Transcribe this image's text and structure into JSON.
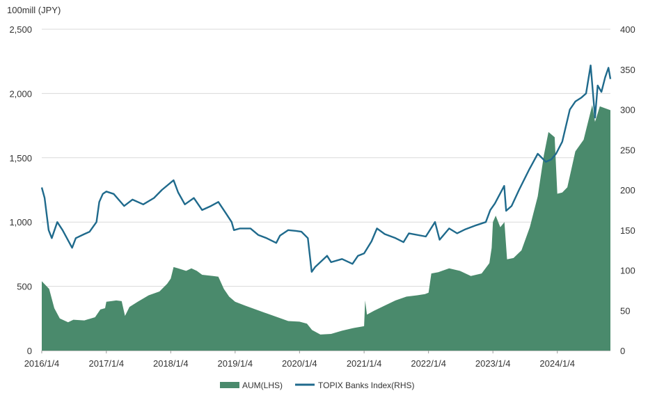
{
  "chart_data": {
    "type": "bar+line",
    "unit_label": "100mill (JPY)",
    "x_tick_labels": [
      "2016/1/4",
      "2017/1/4",
      "2018/1/4",
      "2019/1/4",
      "2020/1/4",
      "2021/1/4",
      "2022/1/4",
      "2023/1/4",
      "2024/1/4"
    ],
    "x_range": [
      "2016-01-04",
      "2024-10-31"
    ],
    "y_left": {
      "min": 0,
      "max": 2500,
      "ticks": [
        0,
        500,
        1000,
        1500,
        2000,
        2500
      ],
      "tick_labels": [
        "0",
        "500",
        "1,000",
        "1,500",
        "2,000",
        "2,500"
      ]
    },
    "y_right": {
      "min": 0,
      "max": 400,
      "ticks": [
        0,
        50,
        100,
        150,
        200,
        250,
        300,
        350,
        400
      ],
      "tick_labels": [
        "0",
        "50",
        "100",
        "150",
        "200",
        "250",
        "300",
        "350",
        "400"
      ]
    },
    "grid": "horizontal",
    "legend_position": "bottom-center",
    "colors": {
      "aum": "#4a8a6c",
      "topix": "#1f6a8c",
      "grid": "#d9d9d9",
      "text": "#333333"
    },
    "series": [
      {
        "name": "AUM(LHS)",
        "kind": "area",
        "axis": "left",
        "points": [
          [
            "2016-01-04",
            540
          ],
          [
            "2016-02-15",
            480
          ],
          [
            "2016-03-15",
            330
          ],
          [
            "2016-04-15",
            250
          ],
          [
            "2016-06-01",
            220
          ],
          [
            "2016-07-01",
            240
          ],
          [
            "2016-09-01",
            235
          ],
          [
            "2016-11-01",
            260
          ],
          [
            "2016-12-01",
            320
          ],
          [
            "2016-12-28",
            330
          ],
          [
            "2017-01-04",
            380
          ],
          [
            "2017-02-01",
            385
          ],
          [
            "2017-03-01",
            390
          ],
          [
            "2017-04-01",
            385
          ],
          [
            "2017-04-20",
            270
          ],
          [
            "2017-05-15",
            340
          ],
          [
            "2017-07-01",
            380
          ],
          [
            "2017-09-01",
            430
          ],
          [
            "2017-11-01",
            460
          ],
          [
            "2017-12-15",
            520
          ],
          [
            "2018-01-04",
            560
          ],
          [
            "2018-01-20",
            650
          ],
          [
            "2018-02-15",
            640
          ],
          [
            "2018-04-01",
            620
          ],
          [
            "2018-05-01",
            640
          ],
          [
            "2018-06-01",
            620
          ],
          [
            "2018-07-01",
            590
          ],
          [
            "2018-09-01",
            580
          ],
          [
            "2018-10-01",
            575
          ],
          [
            "2018-11-01",
            480
          ],
          [
            "2018-12-01",
            420
          ],
          [
            "2019-01-04",
            380
          ],
          [
            "2019-03-01",
            350
          ],
          [
            "2019-05-01",
            320
          ],
          [
            "2019-07-01",
            290
          ],
          [
            "2019-09-01",
            260
          ],
          [
            "2019-11-01",
            230
          ],
          [
            "2020-01-04",
            225
          ],
          [
            "2020-02-15",
            210
          ],
          [
            "2020-03-15",
            160
          ],
          [
            "2020-05-01",
            125
          ],
          [
            "2020-07-01",
            130
          ],
          [
            "2020-09-01",
            155
          ],
          [
            "2020-11-01",
            175
          ],
          [
            "2020-12-15",
            185
          ],
          [
            "2021-01-04",
            190
          ],
          [
            "2021-01-10",
            390
          ],
          [
            "2021-01-20",
            280
          ],
          [
            "2021-03-01",
            310
          ],
          [
            "2021-05-01",
            350
          ],
          [
            "2021-07-01",
            390
          ],
          [
            "2021-09-01",
            420
          ],
          [
            "2021-11-01",
            430
          ],
          [
            "2021-12-15",
            440
          ],
          [
            "2022-01-04",
            450
          ],
          [
            "2022-01-20",
            600
          ],
          [
            "2022-03-01",
            610
          ],
          [
            "2022-05-01",
            640
          ],
          [
            "2022-07-01",
            620
          ],
          [
            "2022-09-01",
            580
          ],
          [
            "2022-11-01",
            600
          ],
          [
            "2022-12-15",
            680
          ],
          [
            "2022-12-28",
            800
          ],
          [
            "2023-01-04",
            1000
          ],
          [
            "2023-01-20",
            1050
          ],
          [
            "2023-02-15",
            960
          ],
          [
            "2023-03-10",
            1000
          ],
          [
            "2023-03-25",
            710
          ],
          [
            "2023-05-01",
            720
          ],
          [
            "2023-06-15",
            780
          ],
          [
            "2023-08-01",
            960
          ],
          [
            "2023-09-15",
            1200
          ],
          [
            "2023-10-20",
            1520
          ],
          [
            "2023-11-15",
            1700
          ],
          [
            "2023-12-20",
            1660
          ],
          [
            "2024-01-04",
            1220
          ],
          [
            "2024-02-01",
            1230
          ],
          [
            "2024-03-01",
            1270
          ],
          [
            "2024-04-15",
            1550
          ],
          [
            "2024-06-01",
            1640
          ],
          [
            "2024-07-20",
            1910
          ],
          [
            "2024-08-05",
            1780
          ],
          [
            "2024-09-01",
            1900
          ],
          [
            "2024-10-31",
            1870
          ]
        ]
      },
      {
        "name": "TOPIX Banks Index(RHS)",
        "kind": "line",
        "axis": "right",
        "points": [
          [
            "2016-01-04",
            203
          ],
          [
            "2016-01-20",
            190
          ],
          [
            "2016-02-12",
            150
          ],
          [
            "2016-03-01",
            140
          ],
          [
            "2016-04-01",
            160
          ],
          [
            "2016-05-01",
            150
          ],
          [
            "2016-06-24",
            128
          ],
          [
            "2016-07-15",
            140
          ],
          [
            "2016-09-01",
            145
          ],
          [
            "2016-10-01",
            148
          ],
          [
            "2016-11-09",
            160
          ],
          [
            "2016-11-25",
            185
          ],
          [
            "2016-12-15",
            195
          ],
          [
            "2017-01-04",
            198
          ],
          [
            "2017-02-15",
            195
          ],
          [
            "2017-04-15",
            180
          ],
          [
            "2017-06-01",
            188
          ],
          [
            "2017-08-01",
            182
          ],
          [
            "2017-10-01",
            190
          ],
          [
            "2017-11-15",
            200
          ],
          [
            "2018-01-20",
            212
          ],
          [
            "2018-02-15",
            197
          ],
          [
            "2018-03-25",
            182
          ],
          [
            "2018-05-15",
            190
          ],
          [
            "2018-07-01",
            175
          ],
          [
            "2018-08-20",
            180
          ],
          [
            "2018-10-01",
            185
          ],
          [
            "2018-11-15",
            170
          ],
          [
            "2018-12-15",
            160
          ],
          [
            "2018-12-28",
            150
          ],
          [
            "2019-02-01",
            152
          ],
          [
            "2019-04-01",
            152
          ],
          [
            "2019-05-15",
            144
          ],
          [
            "2019-07-01",
            140
          ],
          [
            "2019-08-25",
            134
          ],
          [
            "2019-09-15",
            143
          ],
          [
            "2019-11-01",
            150
          ],
          [
            "2019-12-15",
            149
          ],
          [
            "2020-01-15",
            148
          ],
          [
            "2020-02-20",
            140
          ],
          [
            "2020-03-13",
            98
          ],
          [
            "2020-04-01",
            104
          ],
          [
            "2020-06-08",
            118
          ],
          [
            "2020-07-01",
            110
          ],
          [
            "2020-09-01",
            114
          ],
          [
            "2020-10-30",
            108
          ],
          [
            "2020-11-30",
            118
          ],
          [
            "2021-01-04",
            121
          ],
          [
            "2021-02-15",
            136
          ],
          [
            "2021-03-18",
            152
          ],
          [
            "2021-05-01",
            145
          ],
          [
            "2021-07-01",
            140
          ],
          [
            "2021-08-15",
            135
          ],
          [
            "2021-09-15",
            146
          ],
          [
            "2021-12-20",
            142
          ],
          [
            "2022-02-10",
            160
          ],
          [
            "2022-03-08",
            138
          ],
          [
            "2022-05-01",
            152
          ],
          [
            "2022-06-15",
            146
          ],
          [
            "2022-08-01",
            151
          ],
          [
            "2022-10-01",
            156
          ],
          [
            "2022-11-25",
            160
          ],
          [
            "2022-12-20",
            175
          ],
          [
            "2023-01-15",
            183
          ],
          [
            "2023-03-09",
            205
          ],
          [
            "2023-03-20",
            174
          ],
          [
            "2023-04-20",
            180
          ],
          [
            "2023-06-01",
            200
          ],
          [
            "2023-07-28",
            225
          ],
          [
            "2023-09-15",
            245
          ],
          [
            "2023-10-31",
            235
          ],
          [
            "2023-12-01",
            238
          ],
          [
            "2023-12-28",
            245
          ],
          [
            "2024-02-01",
            260
          ],
          [
            "2024-03-15",
            300
          ],
          [
            "2024-04-15",
            310
          ],
          [
            "2024-05-20",
            315
          ],
          [
            "2024-06-15",
            320
          ],
          [
            "2024-07-11",
            355
          ],
          [
            "2024-08-05",
            290
          ],
          [
            "2024-08-20",
            330
          ],
          [
            "2024-09-10",
            322
          ],
          [
            "2024-10-01",
            340
          ],
          [
            "2024-10-20",
            352
          ],
          [
            "2024-10-31",
            338
          ]
        ]
      }
    ]
  }
}
